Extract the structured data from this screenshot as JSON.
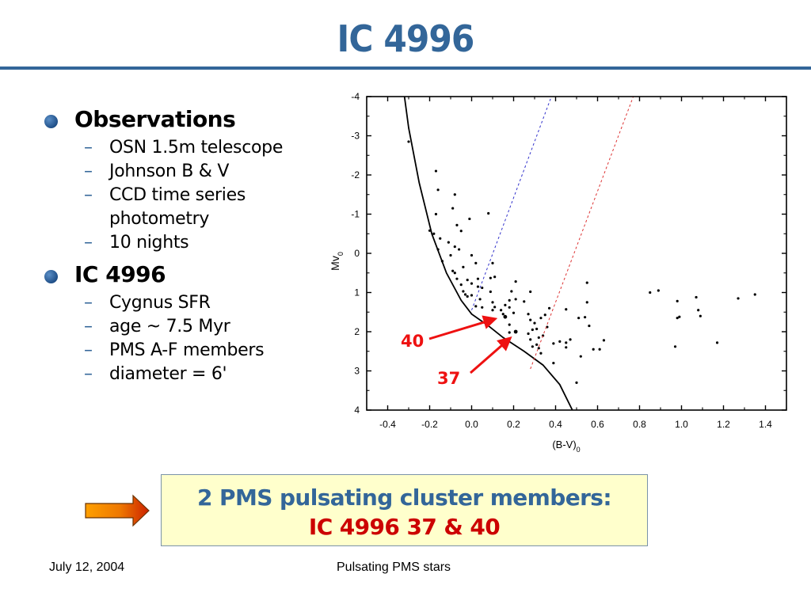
{
  "title": "IC 4996",
  "bullets": [
    {
      "heading": "Observations",
      "icon": "sphere-bullet-icon",
      "items": [
        "OSN 1.5m telescope",
        "Johnson B & V",
        "CCD time series photometry",
        "10 nights"
      ]
    },
    {
      "heading": "IC 4996",
      "icon": "sphere-bullet-icon",
      "items": [
        "Cygnus SFR",
        "age ~ 7.5 Myr",
        "PMS A-F members",
        "diameter = 6'"
      ]
    }
  ],
  "dash": "–",
  "summary": {
    "line1": "2 PMS pulsating cluster members:",
    "line2": "IC 4996 37 & 40",
    "arrow_icon": "right-arrow-icon"
  },
  "footer": {
    "date": "July 12, 2004",
    "title": "Pulsating PMS stars"
  },
  "colors": {
    "title": "#336699",
    "accent_red": "#ee1111",
    "summary_bg": "#ffffcc",
    "blue_edge": "#3333cc",
    "red_edge": "#dd3333"
  },
  "chart_data": {
    "type": "scatter",
    "title": "",
    "xlabel_main": "(B-V)",
    "xlabel_sub": "0",
    "ylabel_main": "Mv",
    "ylabel_sub": "0",
    "xlim": [
      -0.5,
      1.5
    ],
    "ylim": [
      -4,
      4
    ],
    "y_inverted": true,
    "x_ticks": [
      "-0.4",
      "-0.2",
      "0.0",
      "0.2",
      "0.4",
      "0.6",
      "0.8",
      "1.0",
      "1.2",
      "1.4"
    ],
    "x_tick_values": [
      -0.4,
      -0.2,
      0.0,
      0.2,
      0.4,
      0.6,
      0.8,
      1.0,
      1.2,
      1.4
    ],
    "y_ticks": [
      "-4",
      "-3",
      "-2",
      "-1",
      "0",
      "1",
      "2",
      "3",
      "4"
    ],
    "y_tick_values": [
      -4,
      -3,
      -2,
      -1,
      0,
      1,
      2,
      3,
      4
    ],
    "grid": false,
    "series": [
      {
        "name": "stars",
        "kind": "points",
        "points": [
          [
            -0.3,
            -2.85
          ],
          [
            -0.17,
            -2.1
          ],
          [
            -0.16,
            -1.62
          ],
          [
            -0.08,
            -1.5
          ],
          [
            -0.17,
            -1.0
          ],
          [
            -0.09,
            -1.15
          ],
          [
            -0.07,
            -0.72
          ],
          [
            -0.05,
            -0.57
          ],
          [
            -0.01,
            -0.88
          ],
          [
            0.08,
            -1.02
          ],
          [
            -0.2,
            -0.58
          ],
          [
            -0.18,
            -0.5
          ],
          [
            -0.15,
            -0.38
          ],
          [
            -0.11,
            -0.28
          ],
          [
            -0.08,
            -0.17
          ],
          [
            -0.16,
            -0.1
          ],
          [
            -0.06,
            -0.1
          ],
          [
            -0.1,
            0.05
          ],
          [
            0.0,
            0.05
          ],
          [
            -0.14,
            0.2
          ],
          [
            0.02,
            0.25
          ],
          [
            0.1,
            0.25
          ],
          [
            -0.04,
            0.35
          ],
          [
            -0.09,
            0.45
          ],
          [
            -0.08,
            0.5
          ],
          [
            -0.07,
            0.65
          ],
          [
            0.03,
            0.65
          ],
          [
            0.09,
            0.63
          ],
          [
            -0.02,
            0.68
          ],
          [
            0.0,
            0.77
          ],
          [
            0.03,
            0.85
          ],
          [
            -0.05,
            0.8
          ],
          [
            0.05,
            0.88
          ],
          [
            0.11,
            0.6
          ],
          [
            -0.04,
            0.97
          ],
          [
            0.21,
            0.72
          ],
          [
            -0.03,
            1.05
          ],
          [
            0.0,
            1.07
          ],
          [
            0.09,
            0.98
          ],
          [
            0.19,
            0.97
          ],
          [
            -0.02,
            1.1
          ],
          [
            0.1,
            1.25
          ],
          [
            0.04,
            1.17
          ],
          [
            0.11,
            1.37
          ],
          [
            0.14,
            1.45
          ],
          [
            0.18,
            1.2
          ],
          [
            0.21,
            1.17
          ],
          [
            0.25,
            1.23
          ],
          [
            0.15,
            1.55
          ],
          [
            0.16,
            1.32
          ],
          [
            0.18,
            1.38
          ],
          [
            0.2,
            1.52
          ],
          [
            0.1,
            1.45
          ],
          [
            0.05,
            1.38
          ],
          [
            0.02,
            1.35
          ],
          [
            0.18,
            1.82
          ],
          [
            0.18,
            2.02
          ],
          [
            0.28,
            0.98
          ],
          [
            0.27,
            1.55
          ],
          [
            0.28,
            1.7
          ],
          [
            0.3,
            1.78
          ],
          [
            0.33,
            1.65
          ],
          [
            0.35,
            1.57
          ],
          [
            0.37,
            1.4
          ],
          [
            0.29,
            1.95
          ],
          [
            0.31,
            1.93
          ],
          [
            0.27,
            2.05
          ],
          [
            0.28,
            2.2
          ],
          [
            0.32,
            2.15
          ],
          [
            0.34,
            2.1
          ],
          [
            0.36,
            1.88
          ],
          [
            0.29,
            2.38
          ],
          [
            0.31,
            2.33
          ],
          [
            0.32,
            2.42
          ],
          [
            0.33,
            2.55
          ],
          [
            0.39,
            2.3
          ],
          [
            0.42,
            2.25
          ],
          [
            0.45,
            2.4
          ],
          [
            0.45,
            2.28
          ],
          [
            0.47,
            2.2
          ],
          [
            0.39,
            2.8
          ],
          [
            0.45,
            1.43
          ],
          [
            0.51,
            1.65
          ],
          [
            0.52,
            2.63
          ],
          [
            0.54,
            1.63
          ],
          [
            0.55,
            1.25
          ],
          [
            0.55,
            0.75
          ],
          [
            0.56,
            1.85
          ],
          [
            0.58,
            2.45
          ],
          [
            0.61,
            2.45
          ],
          [
            0.63,
            2.22
          ],
          [
            0.5,
            3.3
          ],
          [
            0.85,
            1.0
          ],
          [
            0.89,
            0.95
          ],
          [
            0.98,
            1.22
          ],
          [
            0.98,
            1.65
          ],
          [
            0.99,
            1.62
          ],
          [
            0.97,
            2.38
          ],
          [
            1.07,
            1.12
          ],
          [
            1.08,
            1.45
          ],
          [
            1.09,
            1.6
          ],
          [
            1.17,
            2.28
          ],
          [
            1.27,
            1.15
          ],
          [
            1.35,
            1.05
          ]
        ]
      },
      {
        "name": "star 40",
        "kind": "highlight",
        "points": [
          [
            0.16,
            1.62
          ]
        ],
        "label": "40"
      },
      {
        "name": "star 37",
        "kind": "highlight",
        "points": [
          [
            0.21,
            2.0
          ]
        ],
        "label": "37"
      },
      {
        "name": "ZAMS",
        "kind": "line",
        "style": "solid",
        "color": "#000000",
        "points": [
          [
            -0.32,
            -4.0
          ],
          [
            -0.3,
            -3.2
          ],
          [
            -0.25,
            -1.8
          ],
          [
            -0.19,
            -0.5
          ],
          [
            -0.12,
            0.5
          ],
          [
            -0.05,
            1.2
          ],
          [
            0.0,
            1.55
          ],
          [
            0.08,
            1.85
          ],
          [
            0.15,
            2.15
          ],
          [
            0.25,
            2.5
          ],
          [
            0.34,
            2.85
          ],
          [
            0.42,
            3.35
          ],
          [
            0.48,
            4.0
          ]
        ]
      },
      {
        "name": "blue edge",
        "kind": "line",
        "style": "dotted",
        "color": "#3333cc",
        "points": [
          [
            0.0,
            1.45
          ],
          [
            0.38,
            -4.0
          ]
        ]
      },
      {
        "name": "red edge",
        "kind": "line",
        "style": "dotted",
        "color": "#dd3333",
        "points": [
          [
            0.28,
            2.95
          ],
          [
            0.77,
            -4.0
          ]
        ]
      }
    ],
    "annotations": [
      "40",
      "37"
    ]
  }
}
